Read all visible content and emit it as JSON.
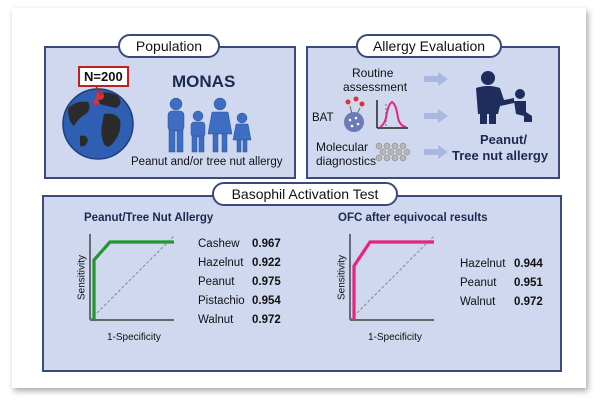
{
  "population": {
    "title": "Population",
    "n_label": "N=200",
    "cohort": "MONAS",
    "caption": "Peanut and/or tree nut allergy"
  },
  "evaluation": {
    "title": "Allergy Evaluation",
    "routine": "Routine",
    "assessment": "assessment",
    "bat": "BAT",
    "molecular": "Molecular",
    "diagnostics": "diagnostics",
    "outcome_line1": "Peanut/",
    "outcome_line2": "Tree nut allergy"
  },
  "bat": {
    "title": "Basophil Activation Test",
    "left_title": "Peanut/Tree Nut Allergy",
    "right_title": "OFC after equivocal results",
    "ylabel": "Sensitivity",
    "xlabel": "1-Specificity",
    "left_items": [
      {
        "name": "Cashew",
        "auc": "0.967"
      },
      {
        "name": "Hazelnut",
        "auc": "0.922"
      },
      {
        "name": "Peanut",
        "auc": "0.975"
      },
      {
        "name": "Pistachio",
        "auc": "0.954"
      },
      {
        "name": "Walnut",
        "auc": "0.972"
      }
    ],
    "right_items": [
      {
        "name": "Hazelnut",
        "auc": "0.944"
      },
      {
        "name": "Peanut",
        "auc": "0.951"
      },
      {
        "name": "Walnut",
        "auc": "0.972"
      }
    ],
    "left_color": "#1e9a2c",
    "right_color": "#e8237c"
  }
}
